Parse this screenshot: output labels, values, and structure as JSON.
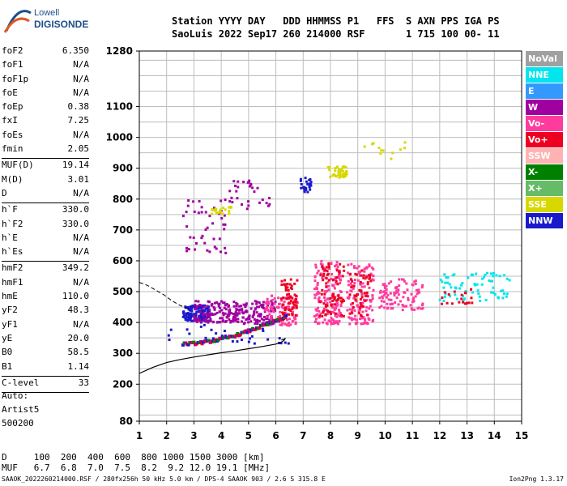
{
  "logo": {
    "line1": "Lowell",
    "line2": "DIGISONDE"
  },
  "header": {
    "labels": "Station YYYY DAY   DDD HHMMSS P1   FFS  S AXN PPS IGA PS",
    "values": "SaoLuis 2022 Sep17 260 214000 RSF       1 715 100 00- 11"
  },
  "params": [
    {
      "name": "foF2",
      "value": "6.350"
    },
    {
      "name": "foF1",
      "value": "N/A"
    },
    {
      "name": "foF1p",
      "value": "N/A"
    },
    {
      "name": "foE",
      "value": "N/A"
    },
    {
      "name": "foEp",
      "value": "0.38"
    },
    {
      "name": "fxI",
      "value": "7.25"
    },
    {
      "name": "foEs",
      "value": "N/A"
    },
    {
      "name": "fmin",
      "value": "2.05"
    },
    {
      "name": "MUF(D)",
      "value": "19.14",
      "sep": true
    },
    {
      "name": "M(D)",
      "value": "3.01"
    },
    {
      "name": "D",
      "value": "N/A"
    },
    {
      "name": "h`F",
      "value": "330.0",
      "sep": true
    },
    {
      "name": "h`F2",
      "value": "330.0"
    },
    {
      "name": "h`E",
      "value": "N/A"
    },
    {
      "name": "h`Es",
      "value": "N/A"
    },
    {
      "name": "hmF2",
      "value": "349.2",
      "sep": true
    },
    {
      "name": "hmF1",
      "value": "N/A"
    },
    {
      "name": "hmE",
      "value": "110.0"
    },
    {
      "name": "yF2",
      "value": "48.3"
    },
    {
      "name": "yF1",
      "value": "N/A"
    },
    {
      "name": "yE",
      "value": "20.0"
    },
    {
      "name": "B0",
      "value": "58.5"
    },
    {
      "name": "B1",
      "value": "1.14"
    },
    {
      "name": "C-level",
      "value": "33",
      "sep": true
    }
  ],
  "auto": {
    "line1": "Auto:",
    "line2": "Artist5",
    "line3": "500200"
  },
  "legend": [
    {
      "label": "NoVal",
      "color": "#a0a0a0"
    },
    {
      "label": "NNE",
      "color": "#00e5ee"
    },
    {
      "label": "E",
      "color": "#3399ff"
    },
    {
      "label": "W",
      "color": "#a000a0"
    },
    {
      "label": "Vo-",
      "color": "#ff3c9e"
    },
    {
      "label": "Vo+",
      "color": "#ee0020"
    },
    {
      "label": "SSW",
      "color": "#ffb2b2"
    },
    {
      "label": "X-",
      "color": "#008000"
    },
    {
      "label": "X+",
      "color": "#66bb66"
    },
    {
      "label": "SSE",
      "color": "#d8d800"
    },
    {
      "label": "NNW",
      "color": "#1a1acc"
    }
  ],
  "freq_table": {
    "d_row": "D     100  200  400  600  800 1000 1500 3000 [km]",
    "muf_row": "MUF   6.7  6.8  7.0  7.5  8.2  9.2 12.0 19.1 [MHz]"
  },
  "footer": "SAAOK_2022260214000.RSF / 280fx256h 50 kHz 5.0 km / DPS-4 SAAOK 903 / 2.6 S 315.8 E",
  "version": "Ion2Png 1.3.17",
  "chart_data": {
    "type": "scatter",
    "x_ticks": [
      1,
      2,
      3,
      4,
      5,
      6,
      7,
      8,
      9,
      10,
      11,
      12,
      13,
      14,
      15
    ],
    "y_ticks": [
      80,
      200,
      300,
      400,
      500,
      600,
      700,
      800,
      900,
      1000,
      1100,
      1280
    ],
    "xlim": [
      1,
      15
    ],
    "ylim": [
      80,
      1280
    ],
    "grid": true,
    "legend_position": "right",
    "clusters": [
      {
        "x": [
          2.6,
          3.6
        ],
        "y": [
          405,
          455
        ],
        "color": "#1a1acc",
        "n": 140
      },
      {
        "x": [
          3.0,
          4.6
        ],
        "y": [
          400,
          470
        ],
        "color": "#a000a0",
        "n": 120
      },
      {
        "x": [
          4.5,
          6.0
        ],
        "y": [
          395,
          470
        ],
        "color": "#a000a0",
        "n": 120
      },
      {
        "x": [
          5.6,
          6.8
        ],
        "y": [
          390,
          490
        ],
        "color": "#ff3c9e",
        "n": 110
      },
      {
        "x": [
          6.2,
          6.8
        ],
        "y": [
          420,
          545
        ],
        "color": "#ee0020",
        "n": 60
      },
      {
        "x": [
          7.4,
          8.4
        ],
        "y": [
          395,
          600
        ],
        "color": "#ff3c9e",
        "n": 160
      },
      {
        "x": [
          7.6,
          8.5
        ],
        "y": [
          420,
          610
        ],
        "color": "#ee0020",
        "n": 70
      },
      {
        "x": [
          8.6,
          9.6
        ],
        "y": [
          395,
          590
        ],
        "color": "#ff3c9e",
        "n": 120
      },
      {
        "x": [
          8.7,
          9.5
        ],
        "y": [
          420,
          580
        ],
        "color": "#ee0020",
        "n": 50
      },
      {
        "x": [
          9.8,
          11.4
        ],
        "y": [
          440,
          540
        ],
        "color": "#ff3c9e",
        "n": 100
      },
      {
        "x": [
          12.0,
          14.6
        ],
        "y": [
          470,
          560
        ],
        "color": "#00e5ee",
        "n": 70
      },
      {
        "x": [
          12.0,
          13.2
        ],
        "y": [
          460,
          510
        ],
        "color": "#ee0020",
        "n": 20
      },
      {
        "x": [
          2.6,
          4.2
        ],
        "y": [
          625,
          800
        ],
        "color": "#a000a0",
        "n": 45
      },
      {
        "x": [
          4.2,
          5.8
        ],
        "y": [
          760,
          860
        ],
        "color": "#a000a0",
        "n": 30
      },
      {
        "x": [
          7.9,
          8.6
        ],
        "y": [
          870,
          910
        ],
        "color": "#d8d800",
        "n": 45
      },
      {
        "x": [
          6.9,
          7.3
        ],
        "y": [
          820,
          870
        ],
        "color": "#1a1acc",
        "n": 25
      },
      {
        "x": [
          3.6,
          4.4
        ],
        "y": [
          750,
          775
        ],
        "color": "#d8d800",
        "n": 20
      },
      {
        "x": [
          9.2,
          10.8
        ],
        "y": [
          930,
          990
        ],
        "color": "#d8d800",
        "n": 12
      },
      {
        "x": [
          2.0,
          6.5
        ],
        "y": [
          330,
          395
        ],
        "color": "#1a1acc",
        "n": 30
      }
    ],
    "echo_trace": {
      "x": [
        2.6,
        3.0,
        3.4,
        3.8,
        4.2,
        4.6,
        5.0,
        5.4,
        5.8,
        6.2,
        6.4
      ],
      "y": [
        330,
        332,
        336,
        342,
        350,
        360,
        372,
        385,
        398,
        410,
        420
      ],
      "colors": [
        "#1a1acc",
        "#008000",
        "#a000a0",
        "#ee0020"
      ]
    },
    "profile_curve": {
      "x": [
        1.0,
        1.5,
        2.0,
        2.5,
        3.0,
        3.5,
        4.0,
        4.5,
        5.0,
        5.5,
        6.0,
        6.2,
        6.3,
        6.35,
        6.3,
        6.2
      ],
      "y": [
        235,
        255,
        270,
        280,
        288,
        295,
        302,
        308,
        315,
        322,
        330,
        336,
        342,
        349,
        346,
        343
      ]
    },
    "dashed_curve": {
      "x": [
        1.0,
        1.3,
        1.6,
        1.9,
        2.2,
        2.5,
        2.8
      ],
      "y": [
        530,
        520,
        505,
        490,
        470,
        455,
        445
      ]
    }
  }
}
